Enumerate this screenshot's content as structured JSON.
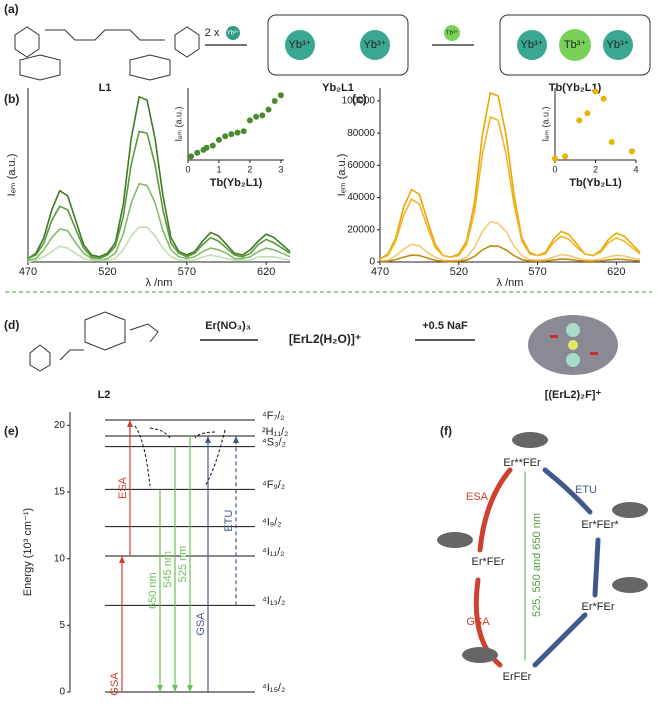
{
  "panels": {
    "a": {
      "label": "(a)",
      "reagent": "2 x",
      "ion_labels": [
        "Yb³⁺",
        "Tb³⁺",
        "Yb³⁺",
        "Yb³⁺",
        "Yb³⁺",
        "Tb³⁺",
        "Yb³⁺"
      ],
      "compounds": [
        "L1",
        "Yb₂L1",
        "Tb(Yb₂L1)"
      ]
    },
    "d": {
      "label": "(d)",
      "compound": "L2",
      "reagent1": "Er(NO₃)₃",
      "intermediate": "[ErL2(H₂O)]⁺",
      "reagent2": "+0.5 NaF",
      "product": "[(ErL2)₂F]⁺"
    },
    "f": {
      "label": "(f)",
      "nodes": [
        "Er**FEr",
        "Er*FEr*",
        "Er*FEr",
        "Er*FEr",
        "ErFEr"
      ],
      "arrow_labels": [
        "ESA",
        "ETU",
        "GSA",
        "525, 550 and 650 nm"
      ]
    }
  },
  "chart_data": [
    {
      "type": "line",
      "panel_label": "(b)",
      "xlabel": "λ /nm",
      "ylabel": "Iₑₘ (a.u.)",
      "xlim": [
        470,
        635
      ],
      "ylim": [
        0,
        1
      ],
      "xticks": [
        470,
        520,
        570,
        620
      ],
      "x": [
        470,
        475,
        480,
        485,
        490,
        495,
        500,
        505,
        510,
        515,
        520,
        525,
        530,
        535,
        540,
        545,
        550,
        555,
        560,
        565,
        570,
        575,
        580,
        585,
        590,
        595,
        600,
        605,
        610,
        615,
        620,
        625,
        630,
        635
      ],
      "series": [
        {
          "color": "#3d7a22",
          "values": [
            0.02,
            0.05,
            0.14,
            0.3,
            0.41,
            0.38,
            0.24,
            0.1,
            0.04,
            0.03,
            0.05,
            0.11,
            0.33,
            0.71,
            0.95,
            0.93,
            0.71,
            0.38,
            0.14,
            0.06,
            0.04,
            0.06,
            0.12,
            0.17,
            0.15,
            0.1,
            0.05,
            0.04,
            0.07,
            0.12,
            0.16,
            0.14,
            0.1,
            0.06
          ]
        },
        {
          "color": "#5a9a3a",
          "values": [
            0.02,
            0.04,
            0.11,
            0.24,
            0.32,
            0.3,
            0.19,
            0.08,
            0.03,
            0.02,
            0.04,
            0.09,
            0.26,
            0.56,
            0.75,
            0.74,
            0.56,
            0.3,
            0.11,
            0.05,
            0.03,
            0.05,
            0.1,
            0.14,
            0.12,
            0.08,
            0.04,
            0.03,
            0.05,
            0.1,
            0.13,
            0.11,
            0.08,
            0.05
          ]
        },
        {
          "color": "#86bb6a",
          "values": [
            0.01,
            0.02,
            0.07,
            0.14,
            0.19,
            0.18,
            0.11,
            0.05,
            0.02,
            0.01,
            0.02,
            0.05,
            0.16,
            0.34,
            0.45,
            0.44,
            0.34,
            0.18,
            0.07,
            0.03,
            0.02,
            0.03,
            0.06,
            0.08,
            0.07,
            0.05,
            0.02,
            0.02,
            0.03,
            0.06,
            0.08,
            0.07,
            0.05,
            0.03
          ]
        },
        {
          "color": "#c2dfb2",
          "values": [
            0.0,
            0.01,
            0.03,
            0.06,
            0.09,
            0.08,
            0.05,
            0.02,
            0.01,
            0.01,
            0.01,
            0.02,
            0.07,
            0.15,
            0.2,
            0.2,
            0.15,
            0.08,
            0.03,
            0.01,
            0.01,
            0.01,
            0.03,
            0.04,
            0.03,
            0.02,
            0.01,
            0.01,
            0.01,
            0.03,
            0.03,
            0.03,
            0.02,
            0.01
          ]
        }
      ]
    },
    {
      "type": "scatter",
      "xlabel": "Tb(Yb₂L1)",
      "ylabel": "Iₑₘ (a.u.)",
      "xlim": [
        0,
        3.1
      ],
      "ylim": [
        0,
        1
      ],
      "xticks": [
        0,
        1,
        2,
        3
      ],
      "color": "#4a8a2e",
      "x": [
        0.1,
        0.3,
        0.5,
        0.6,
        0.8,
        1.0,
        1.2,
        1.4,
        1.6,
        1.8,
        2.0,
        2.2,
        2.4,
        2.6,
        2.8,
        3.0
      ],
      "values": [
        0.05,
        0.1,
        0.14,
        0.17,
        0.2,
        0.28,
        0.33,
        0.36,
        0.38,
        0.4,
        0.55,
        0.6,
        0.62,
        0.7,
        0.82,
        0.9
      ]
    },
    {
      "type": "line",
      "panel_label": "(c)",
      "xlabel": "λ /nm",
      "ylabel": "Iₑₘ (a.u.)",
      "xlim": [
        470,
        635
      ],
      "ylim": [
        0,
        108000
      ],
      "xticks": [
        470,
        520,
        570,
        620
      ],
      "yticks": [
        0,
        20000,
        40000,
        60000,
        80000,
        100000
      ],
      "x": [
        470,
        475,
        480,
        485,
        490,
        495,
        500,
        505,
        510,
        515,
        520,
        525,
        530,
        535,
        540,
        545,
        550,
        555,
        560,
        565,
        570,
        575,
        580,
        585,
        590,
        595,
        600,
        605,
        610,
        615,
        620,
        625,
        630,
        635
      ],
      "series": [
        {
          "color": "#e8a800",
          "values": [
            2000,
            5000,
            15000,
            34000,
            45000,
            42000,
            26000,
            11000,
            4000,
            3000,
            5000,
            13000,
            37000,
            79000,
            105000,
            103000,
            79000,
            42000,
            15000,
            6000,
            4000,
            6000,
            14000,
            19000,
            17000,
            11000,
            5000,
            4000,
            7000,
            14000,
            18000,
            16000,
            11000,
            6000
          ]
        },
        {
          "color": "#f0b52a",
          "values": [
            2000,
            4000,
            13000,
            29000,
            39000,
            36000,
            22000,
            9000,
            4000,
            3000,
            4000,
            11000,
            31000,
            67000,
            90000,
            88000,
            67000,
            36000,
            13000,
            5000,
            4000,
            5000,
            12000,
            16000,
            14000,
            9000,
            5000,
            4000,
            6000,
            12000,
            15000,
            13000,
            9000,
            5000
          ]
        },
        {
          "color": "#f3c872",
          "values": [
            500,
            1000,
            4000,
            8000,
            11000,
            10000,
            6000,
            3000,
            1000,
            800,
            1000,
            3000,
            9000,
            19000,
            25000,
            24000,
            19000,
            10000,
            4000,
            1500,
            1000,
            1500,
            3000,
            4500,
            4000,
            2500,
            1300,
            1000,
            1800,
            3200,
            4200,
            3700,
            2500,
            1500
          ]
        },
        {
          "color": "#c48a10",
          "values": [
            200,
            500,
            1500,
            3000,
            4300,
            4000,
            2500,
            1000,
            400,
            300,
            500,
            1200,
            3500,
            7500,
            10000,
            9800,
            7500,
            4000,
            1500,
            600,
            400,
            600,
            1300,
            1800,
            1600,
            1000,
            500,
            400,
            700,
            1300,
            1700,
            1500,
            1000,
            600
          ]
        }
      ]
    },
    {
      "type": "scatter",
      "xlabel": "Tb(Yb₂L1)",
      "ylabel": "Iₑₘ (a.u.)",
      "xlim": [
        0,
        4
      ],
      "ylim": [
        0,
        1
      ],
      "xticks": [
        0,
        2,
        4
      ],
      "color": "#e8b400",
      "x": [
        0,
        0.5,
        1.2,
        1.6,
        2,
        2.4,
        2.8,
        3.8
      ],
      "values": [
        0.02,
        0.05,
        0.55,
        0.65,
        0.95,
        0.85,
        0.25,
        0.12
      ]
    },
    {
      "type": "energy",
      "panel_label": "(e)",
      "ylabel": "Energy (10³ cm⁻¹)",
      "ylim": [
        0,
        21
      ],
      "yticks": [
        0,
        5,
        10,
        15,
        20
      ],
      "levels": [
        {
          "name": "⁴F₇/₂",
          "value": 20.4
        },
        {
          "name": "²H₁₁/₂",
          "value": 19.2
        },
        {
          "name": "⁴S₃/₂",
          "value": 18.4
        },
        {
          "name": "⁴F₉/₂",
          "value": 15.2
        },
        {
          "name": "⁴I₉/₂",
          "value": 12.4
        },
        {
          "name": "⁴I₁₁/₂",
          "value": 10.2
        },
        {
          "name": "⁴I₁₃/₂",
          "value": 6.5
        },
        {
          "name": "⁴I₁₅/₂",
          "value": 0
        }
      ],
      "transitions": [
        {
          "label": "GSA",
          "from": 0,
          "to": 10.2,
          "color": "#d0402e"
        },
        {
          "label": "ESA",
          "from": 10.2,
          "to": 20.4,
          "color": "#d0402e"
        },
        {
          "label": "650 nm",
          "from": 15.2,
          "to": 0,
          "color": "#6cbf5a"
        },
        {
          "label": "545 nm",
          "from": 18.4,
          "to": 0,
          "color": "#6cbf5a"
        },
        {
          "label": "525 nm",
          "from": 19.2,
          "to": 0,
          "color": "#6cbf5a"
        },
        {
          "label": "GSA",
          "from": 0,
          "to": 19.2,
          "color": "#3f5a8a"
        },
        {
          "label": "ETU",
          "from": 6.5,
          "to": 19.2,
          "color": "#3f5a8a",
          "dashed": true
        }
      ]
    }
  ]
}
